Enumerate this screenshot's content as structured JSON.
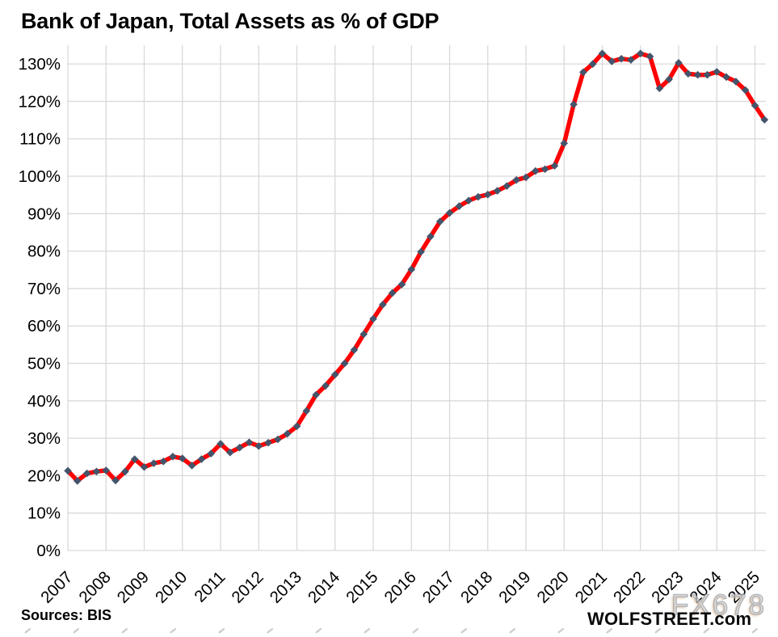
{
  "page": {
    "title": "Bank of Japan, Total Assets as % of GDP",
    "source_note": "Sources: BIS",
    "brand": "WOLFSTREET.com",
    "watermark": "FX678"
  },
  "colors": {
    "line": "#fe0000",
    "marker": "#44546A",
    "grid": "#d9d9d9",
    "axis_text": "#000000",
    "background": "#ffffff"
  },
  "chart_data": {
    "type": "line",
    "title": "Bank of Japan, Total Assets as % of GDP",
    "grid": true,
    "legend": false,
    "x_axis": {
      "tick_labels": [
        "2007",
        "2008",
        "2009",
        "2010",
        "2011",
        "2012",
        "2013",
        "2014",
        "2015",
        "2016",
        "2017",
        "2018",
        "2019",
        "2020",
        "2021",
        "2022",
        "2023",
        "2024",
        "2025"
      ],
      "frequency": "quarterly"
    },
    "y_axis": {
      "ticks": [
        0,
        10,
        20,
        30,
        40,
        50,
        60,
        70,
        80,
        90,
        100,
        110,
        120,
        130
      ],
      "tick_suffix": "%",
      "range": [
        0,
        135
      ]
    },
    "series": [
      {
        "name": "BoJ total assets as % of GDP",
        "start_label": "2007 Q1",
        "points_per_year": 4,
        "values": [
          21.3,
          18.6,
          20.6,
          21.1,
          21.4,
          18.7,
          21.1,
          24.4,
          22.3,
          23.3,
          23.8,
          25.1,
          24.6,
          22.7,
          24.4,
          25.9,
          28.5,
          26.2,
          27.5,
          28.9,
          27.9,
          28.8,
          29.7,
          31.2,
          33.2,
          37.3,
          41.6,
          44.0,
          47.0,
          50.0,
          53.6,
          57.8,
          61.9,
          65.7,
          68.8,
          71.1,
          75.1,
          79.8,
          83.9,
          87.9,
          90.2,
          92.0,
          93.5,
          94.5,
          95.1,
          96.1,
          97.4,
          99.0,
          99.7,
          101.4,
          101.9,
          102.8,
          108.8,
          119.2,
          127.8,
          130.0,
          132.8,
          130.7,
          131.4,
          131.1,
          132.8,
          132.0,
          123.5,
          125.9,
          130.3,
          127.4,
          127.1,
          127.1,
          127.9,
          126.5,
          125.3,
          123.0,
          118.9,
          115.1
        ]
      }
    ]
  }
}
